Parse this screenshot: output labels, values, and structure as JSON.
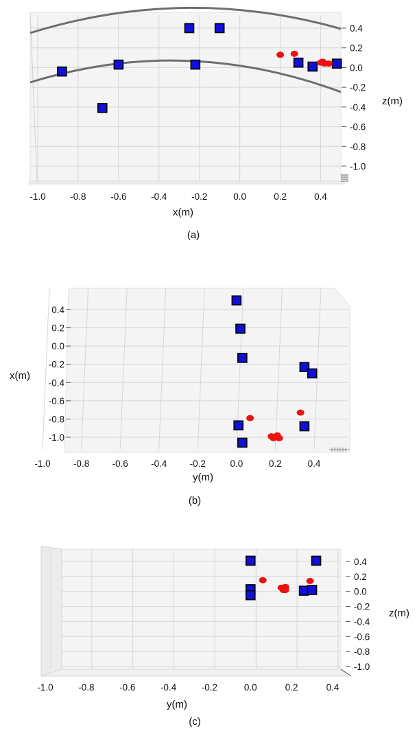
{
  "colors": {
    "anchor": "#1010d8",
    "anchor_edge": "#000000",
    "tag": "#ee1111",
    "arc": "#6e6e6e"
  },
  "chart_data": [
    {
      "type": "scatter",
      "caption": "(a)",
      "xlabel": "x(m)",
      "ylabel": "z(m)",
      "xlim": [
        -1.0,
        0.5
      ],
      "ylim": [
        -1.1,
        0.45
      ],
      "xticks": [
        "-1.0",
        "-0.8",
        "-0.6",
        "-0.4",
        "-0.2",
        "0.0",
        "0.2",
        "0.4"
      ],
      "yticks": [
        "0.4",
        "0.2",
        "0.0",
        "-0.2",
        "-0.4",
        "-0.6",
        "-0.8",
        "-1.0"
      ],
      "grid": true,
      "series": [
        {
          "marker": "square",
          "color": "anchor",
          "points": [
            [
              -0.88,
              -0.04
            ],
            [
              -0.6,
              0.03
            ],
            [
              -0.68,
              -0.41
            ],
            [
              -0.25,
              0.4
            ],
            [
              -0.1,
              0.4
            ],
            [
              -0.22,
              0.03
            ],
            [
              0.29,
              0.05
            ],
            [
              0.36,
              0.01
            ],
            [
              0.48,
              0.04
            ]
          ]
        },
        {
          "marker": "circle",
          "color": "tag",
          "points": [
            [
              0.2,
              0.13
            ],
            [
              0.27,
              0.14
            ],
            [
              0.4,
              0.05
            ],
            [
              0.42,
              0.04
            ],
            [
              0.44,
              0.04
            ],
            [
              0.41,
              0.06
            ]
          ]
        }
      ]
    },
    {
      "type": "scatter",
      "caption": "(b)",
      "xlabel": "y(m)",
      "ylabel": "x(m)",
      "xlim": [
        -1.05,
        0.55
      ],
      "ylim": [
        -1.1,
        0.52
      ],
      "xticks": [
        "-1.0",
        "-0.8",
        "-0.6",
        "-0.4",
        "-0.2",
        "0.0",
        "0.2",
        "0.4"
      ],
      "yticks": [
        "0.4",
        "0.2",
        "0.0",
        "-0.2",
        "-0.4",
        "-0.6",
        "-0.8",
        "-1.0"
      ],
      "grid": true,
      "series": [
        {
          "marker": "square",
          "color": "anchor",
          "points": [
            [
              0.0,
              0.5
            ],
            [
              0.02,
              0.19
            ],
            [
              0.03,
              -0.13
            ],
            [
              0.35,
              -0.23
            ],
            [
              0.39,
              -0.3
            ],
            [
              0.01,
              -0.87
            ],
            [
              0.03,
              -1.06
            ],
            [
              0.35,
              -0.88
            ]
          ]
        },
        {
          "marker": "circle",
          "color": "tag",
          "points": [
            [
              0.07,
              -0.79
            ],
            [
              0.33,
              -0.73
            ],
            [
              0.18,
              -0.99
            ],
            [
              0.2,
              -1.0
            ],
            [
              0.21,
              -0.98
            ],
            [
              0.22,
              -1.01
            ],
            [
              0.19,
              -1.01
            ]
          ]
        }
      ]
    },
    {
      "type": "scatter",
      "caption": "(c)",
      "xlabel": "y(m)",
      "ylabel": "z(m)",
      "xlim": [
        -1.05,
        0.45
      ],
      "ylim": [
        -1.1,
        0.5
      ],
      "xticks": [
        "-1.0",
        "-0.8",
        "-0.6",
        "-0.4",
        "-0.2",
        "0.0",
        "0.2",
        "0.4"
      ],
      "yticks": [
        "0.4",
        "0.2",
        "0.0",
        "-0.2",
        "-0.4",
        "-0.6",
        "-0.8",
        "-1.0"
      ],
      "grid": true,
      "series": [
        {
          "marker": "square",
          "color": "anchor",
          "points": [
            [
              0.0,
              0.41
            ],
            [
              0.32,
              0.41
            ],
            [
              0.0,
              0.03
            ],
            [
              0.0,
              -0.05
            ],
            [
              0.26,
              0.01
            ],
            [
              0.3,
              0.02
            ]
          ]
        },
        {
          "marker": "circle",
          "color": "tag",
          "points": [
            [
              0.06,
              0.15
            ],
            [
              0.29,
              0.14
            ],
            [
              0.15,
              0.05
            ],
            [
              0.16,
              0.04
            ],
            [
              0.17,
              0.06
            ],
            [
              0.16,
              0.02
            ],
            [
              0.17,
              0.02
            ]
          ]
        }
      ]
    }
  ]
}
